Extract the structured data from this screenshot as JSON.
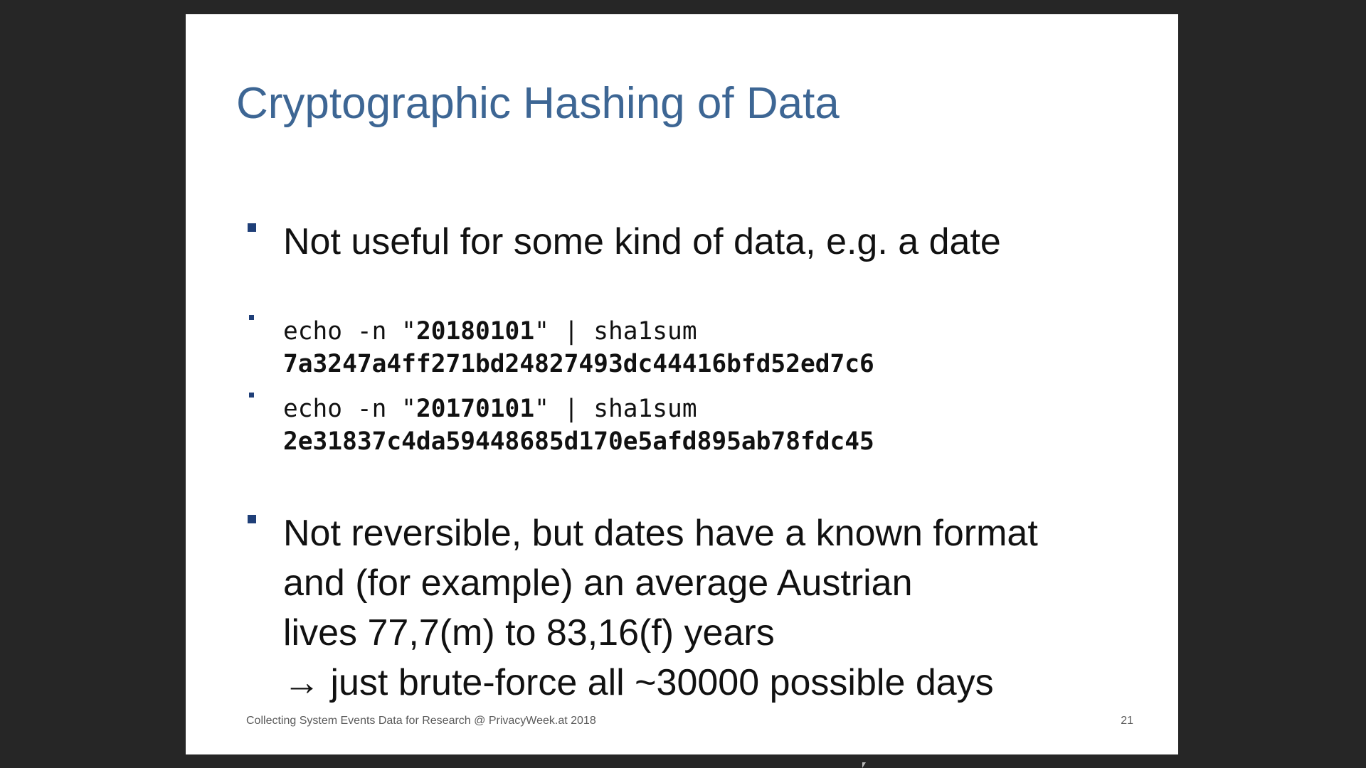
{
  "slide": {
    "title": "Cryptographic Hashing of Data",
    "bullet1": "Not useful for some kind of data, e.g. a date",
    "code1": {
      "prefix": "echo -n \"",
      "value": "20180101",
      "suffix": "\" | sha1sum",
      "hash": "7a3247a4ff271bd24827493dc44416bfd52ed7c6"
    },
    "code2": {
      "prefix": "echo -n \"",
      "value": "20170101",
      "suffix": "\" | sha1sum",
      "hash": "2e31837c4da59448685d170e5afd895ab78fdc45"
    },
    "bullet2": {
      "line1": "Not reversible, but dates have a known format",
      "line2": "and (for example) an average Austrian",
      "line3": "lives 77,7(m) to 83,16(f) years",
      "line4": "→ just brute-force all ~30000 possible days"
    },
    "footer": "Collecting System Events Data for Research @ PrivacyWeek.at 2018",
    "page_number": "21"
  },
  "colors": {
    "title": "#3d6694",
    "bullet_marker": "#1f3f78",
    "background": "#262626"
  }
}
